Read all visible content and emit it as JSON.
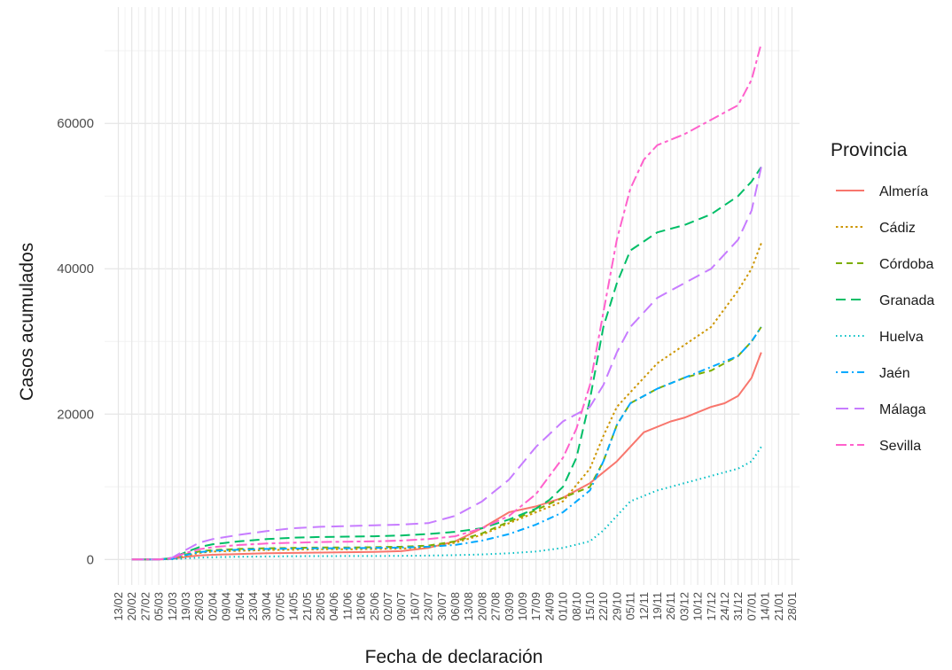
{
  "chart_data": {
    "type": "line",
    "xlabel": "Fecha de declaración",
    "ylabel": "Casos acumulados",
    "legend_title": "Provincia",
    "legend_position": "right",
    "grid": true,
    "ylim": [
      -3500,
      76000
    ],
    "y_ticks": [
      0,
      20000,
      40000,
      60000
    ],
    "y_tick_labels": [
      "0",
      "20000",
      "40000",
      "60000"
    ],
    "x_start": "13/02",
    "x_step_days": 7,
    "x_ticks": [
      "13/02",
      "20/02",
      "27/02",
      "05/03",
      "12/03",
      "19/03",
      "26/03",
      "02/04",
      "09/04",
      "16/04",
      "23/04",
      "30/04",
      "07/05",
      "14/05",
      "21/05",
      "28/05",
      "04/06",
      "11/06",
      "18/06",
      "25/06",
      "02/07",
      "09/07",
      "16/07",
      "23/07",
      "30/07",
      "06/08",
      "13/08",
      "20/08",
      "27/08",
      "03/09",
      "10/09",
      "17/09",
      "24/09",
      "01/10",
      "08/10",
      "15/10",
      "22/10",
      "29/10",
      "05/11",
      "12/11",
      "19/11",
      "26/11",
      "03/12",
      "10/12",
      "17/12",
      "24/12",
      "31/12",
      "07/01",
      "14/01",
      "21/01",
      "28/01"
    ],
    "series": [
      {
        "name": "Almería",
        "color": "#F8766D",
        "dash": "solid",
        "x": [
          "20/02",
          "05/03",
          "12/03",
          "19/03",
          "26/03",
          "02/04",
          "16/04",
          "30/04",
          "14/05",
          "28/05",
          "11/06",
          "25/06",
          "09/07",
          "23/07",
          "06/08",
          "20/08",
          "03/09",
          "17/09",
          "01/10",
          "15/10",
          "29/10",
          "05/11",
          "12/11",
          "26/11",
          "03/12",
          "17/12",
          "24/12",
          "31/12",
          "07/01",
          "12/01"
        ],
        "y": [
          0,
          0,
          80,
          350,
          550,
          650,
          750,
          850,
          900,
          950,
          1000,
          1050,
          1150,
          1600,
          2500,
          4300,
          6500,
          7300,
          8500,
          10500,
          13500,
          15500,
          17500,
          19000,
          19500,
          21000,
          21500,
          22500,
          25000,
          28500
        ]
      },
      {
        "name": "Cádiz",
        "color": "#CD9600",
        "dash": "dotted",
        "x": [
          "20/02",
          "05/03",
          "12/03",
          "19/03",
          "26/03",
          "02/04",
          "16/04",
          "30/04",
          "14/05",
          "28/05",
          "11/06",
          "25/06",
          "09/07",
          "23/07",
          "06/08",
          "20/08",
          "03/09",
          "17/09",
          "01/10",
          "15/10",
          "22/10",
          "29/10",
          "05/11",
          "19/11",
          "03/12",
          "17/12",
          "31/12",
          "07/01",
          "12/01"
        ],
        "y": [
          0,
          0,
          100,
          500,
          900,
          1100,
          1200,
          1300,
          1350,
          1400,
          1400,
          1450,
          1500,
          1700,
          2300,
          3400,
          5000,
          6500,
          8000,
          12500,
          17000,
          21000,
          23000,
          27000,
          29500,
          32000,
          37000,
          40000,
          43500
        ]
      },
      {
        "name": "Córdoba",
        "color": "#7CAE00",
        "dash": "dashed",
        "x": [
          "20/02",
          "05/03",
          "12/03",
          "19/03",
          "26/03",
          "02/04",
          "16/04",
          "30/04",
          "14/05",
          "28/05",
          "11/06",
          "25/06",
          "09/07",
          "23/07",
          "06/08",
          "20/08",
          "03/09",
          "17/09",
          "01/10",
          "15/10",
          "22/10",
          "29/10",
          "05/11",
          "19/11",
          "03/12",
          "17/12",
          "31/12",
          "07/01",
          "12/01"
        ],
        "y": [
          0,
          0,
          150,
          700,
          1100,
          1300,
          1450,
          1550,
          1600,
          1650,
          1650,
          1700,
          1750,
          1900,
          2500,
          3600,
          5200,
          6800,
          8500,
          10000,
          13500,
          18500,
          21500,
          23500,
          25000,
          26000,
          28000,
          30000,
          32000
        ]
      },
      {
        "name": "Granada",
        "color": "#00BE67",
        "dash": "longdash",
        "x": [
          "20/02",
          "05/03",
          "12/03",
          "19/03",
          "26/03",
          "02/04",
          "16/04",
          "30/04",
          "14/05",
          "28/05",
          "11/06",
          "25/06",
          "09/07",
          "23/07",
          "06/08",
          "20/08",
          "03/09",
          "17/09",
          "24/09",
          "01/10",
          "08/10",
          "15/10",
          "22/10",
          "29/10",
          "05/11",
          "19/11",
          "03/12",
          "17/12",
          "31/12",
          "07/01",
          "12/01"
        ],
        "y": [
          0,
          0,
          200,
          1000,
          1700,
          2100,
          2500,
          2800,
          3000,
          3100,
          3150,
          3200,
          3300,
          3500,
          3800,
          4300,
          5500,
          7000,
          8200,
          10000,
          14000,
          22000,
          32000,
          38000,
          42500,
          45000,
          46000,
          47500,
          50000,
          52000,
          54000
        ]
      },
      {
        "name": "Huelva",
        "color": "#00BFC4",
        "dash": "dot",
        "x": [
          "20/02",
          "05/03",
          "12/03",
          "19/03",
          "26/03",
          "02/04",
          "16/04",
          "30/04",
          "14/05",
          "28/05",
          "11/06",
          "25/06",
          "09/07",
          "23/07",
          "06/08",
          "20/08",
          "03/09",
          "17/09",
          "01/10",
          "15/10",
          "22/10",
          "29/10",
          "05/11",
          "19/11",
          "03/12",
          "17/12",
          "31/12",
          "07/01",
          "12/01"
        ],
        "y": [
          0,
          0,
          30,
          150,
          250,
          320,
          380,
          420,
          450,
          460,
          470,
          480,
          500,
          540,
          600,
          700,
          850,
          1100,
          1600,
          2500,
          4000,
          6000,
          8000,
          9500,
          10500,
          11500,
          12500,
          13500,
          15500
        ]
      },
      {
        "name": "Jaén",
        "color": "#00A9FF",
        "dash": "dotdash",
        "x": [
          "20/02",
          "05/03",
          "12/03",
          "19/03",
          "26/03",
          "02/04",
          "16/04",
          "30/04",
          "14/05",
          "28/05",
          "11/06",
          "25/06",
          "09/07",
          "23/07",
          "06/08",
          "20/08",
          "03/09",
          "17/09",
          "01/10",
          "15/10",
          "22/10",
          "29/10",
          "05/11",
          "19/11",
          "03/12",
          "17/12",
          "31/12",
          "07/01",
          "12/01"
        ],
        "y": [
          0,
          0,
          100,
          600,
          1000,
          1200,
          1350,
          1450,
          1500,
          1550,
          1550,
          1600,
          1650,
          1750,
          2000,
          2600,
          3500,
          4800,
          6500,
          9500,
          13500,
          18500,
          21500,
          23500,
          25000,
          26500,
          28000,
          30000,
          32000
        ]
      },
      {
        "name": "Málaga",
        "color": "#C77CFF",
        "dash": "longdash2",
        "x": [
          "20/02",
          "05/03",
          "12/03",
          "19/03",
          "26/03",
          "02/04",
          "16/04",
          "30/04",
          "14/05",
          "28/05",
          "11/06",
          "25/06",
          "09/07",
          "23/07",
          "06/08",
          "20/08",
          "03/09",
          "17/09",
          "01/10",
          "15/10",
          "22/10",
          "29/10",
          "05/11",
          "19/11",
          "03/12",
          "17/12",
          "31/12",
          "07/01",
          "12/01"
        ],
        "y": [
          0,
          0,
          250,
          1300,
          2300,
          2800,
          3400,
          3900,
          4300,
          4500,
          4600,
          4700,
          4800,
          5000,
          6000,
          8000,
          11000,
          15500,
          19000,
          21000,
          24000,
          28500,
          32000,
          36000,
          38000,
          40000,
          44000,
          48000,
          54000
        ]
      },
      {
        "name": "Sevilla",
        "color": "#FF61CC",
        "dash": "twodash",
        "x": [
          "20/02",
          "05/03",
          "12/03",
          "19/03",
          "26/03",
          "02/04",
          "16/04",
          "30/04",
          "14/05",
          "28/05",
          "11/06",
          "25/06",
          "09/07",
          "23/07",
          "06/08",
          "20/08",
          "03/09",
          "17/09",
          "01/10",
          "08/10",
          "15/10",
          "22/10",
          "29/10",
          "05/11",
          "12/11",
          "19/11",
          "03/12",
          "17/12",
          "31/12",
          "07/01",
          "12/01"
        ],
        "y": [
          0,
          0,
          150,
          900,
          1400,
          1700,
          2000,
          2200,
          2300,
          2400,
          2450,
          2500,
          2600,
          2800,
          3200,
          4300,
          6000,
          9000,
          14000,
          18000,
          24000,
          34000,
          44000,
          51000,
          55000,
          57000,
          58500,
          60500,
          62500,
          66000,
          71000
        ]
      }
    ]
  }
}
